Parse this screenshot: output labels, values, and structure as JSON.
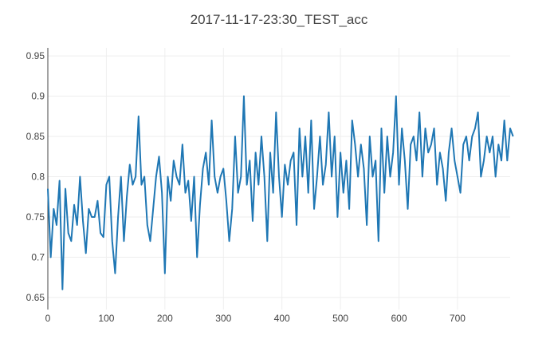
{
  "chart_data": {
    "type": "line",
    "title": "2017-11-17-23:30_TEST_acc",
    "xlabel": "",
    "ylabel": "",
    "xlim": [
      0,
      790
    ],
    "ylim": [
      0.635,
      0.96
    ],
    "x_ticks": [
      0,
      100,
      200,
      300,
      400,
      500,
      600,
      700
    ],
    "y_ticks": [
      0.65,
      0.7,
      0.75,
      0.8,
      0.85,
      0.9,
      0.95
    ],
    "y_tick_labels": [
      "0.65",
      "0.7",
      "0.75",
      "0.8",
      "0.85",
      "0.9",
      "0.95"
    ],
    "grid": true,
    "legend": "none",
    "series_color": "#1f77b4",
    "series": [
      {
        "x_start": 0,
        "x_step": 5,
        "values": [
          0.785,
          0.7,
          0.76,
          0.74,
          0.795,
          0.66,
          0.785,
          0.73,
          0.72,
          0.765,
          0.74,
          0.8,
          0.745,
          0.705,
          0.76,
          0.75,
          0.75,
          0.77,
          0.73,
          0.725,
          0.79,
          0.8,
          0.72,
          0.68,
          0.75,
          0.8,
          0.72,
          0.775,
          0.815,
          0.79,
          0.8,
          0.875,
          0.79,
          0.8,
          0.74,
          0.72,
          0.76,
          0.8,
          0.825,
          0.78,
          0.68,
          0.8,
          0.77,
          0.82,
          0.8,
          0.79,
          0.84,
          0.78,
          0.795,
          0.745,
          0.8,
          0.7,
          0.765,
          0.81,
          0.83,
          0.79,
          0.87,
          0.8,
          0.78,
          0.8,
          0.81,
          0.77,
          0.72,
          0.76,
          0.85,
          0.78,
          0.8,
          0.9,
          0.79,
          0.82,
          0.745,
          0.83,
          0.79,
          0.85,
          0.8,
          0.72,
          0.83,
          0.78,
          0.88,
          0.8,
          0.75,
          0.815,
          0.79,
          0.82,
          0.83,
          0.74,
          0.86,
          0.8,
          0.85,
          0.78,
          0.87,
          0.76,
          0.8,
          0.85,
          0.79,
          0.815,
          0.88,
          0.8,
          0.85,
          0.75,
          0.83,
          0.78,
          0.82,
          0.76,
          0.87,
          0.84,
          0.8,
          0.84,
          0.81,
          0.74,
          0.85,
          0.8,
          0.82,
          0.72,
          0.86,
          0.78,
          0.85,
          0.8,
          0.83,
          0.9,
          0.79,
          0.86,
          0.82,
          0.76,
          0.84,
          0.85,
          0.82,
          0.88,
          0.8,
          0.86,
          0.83,
          0.84,
          0.86,
          0.79,
          0.83,
          0.81,
          0.77,
          0.83,
          0.86,
          0.82,
          0.8,
          0.78,
          0.84,
          0.85,
          0.82,
          0.85,
          0.86,
          0.88,
          0.8,
          0.82,
          0.85,
          0.83,
          0.85,
          0.8,
          0.84,
          0.82,
          0.87,
          0.82,
          0.86,
          0.85
        ]
      }
    ]
  }
}
